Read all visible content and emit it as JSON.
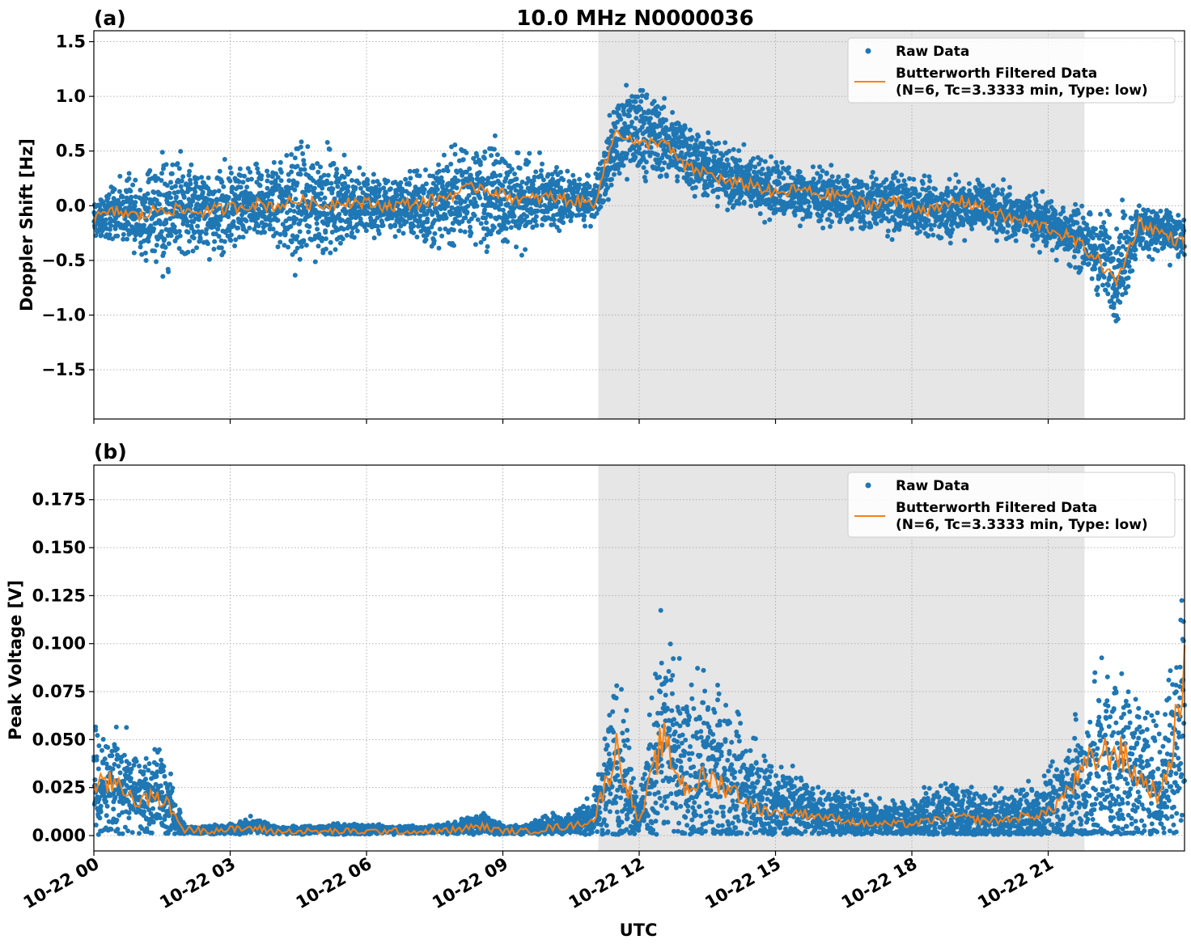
{
  "figure": {
    "title": "10.0 MHz N0000036",
    "xlabel": "UTC"
  },
  "colors": {
    "raw": "#1f77b4",
    "filtered": "#ff7f0e",
    "shade": "#e6e6e6",
    "grid": "#b0b0b0"
  },
  "x_ticks": [
    "10-22 00",
    "10-22 03",
    "10-22 06",
    "10-22 09",
    "10-22 12",
    "10-22 15",
    "10-22 18",
    "10-22 21"
  ],
  "chart_data": [
    {
      "type": "scatter",
      "panel": "(a)",
      "title": "10.0 MHz N0000036",
      "xlabel": "",
      "ylabel": "Doppler Shift [Hz]",
      "x_unit": "hours UTC on 10-22",
      "xlim": [
        0,
        24
      ],
      "ylim": [
        -1.95,
        1.6
      ],
      "yticks": [
        "1.5",
        "1.0",
        "0.5",
        "0.0",
        "−0.5",
        "−1.0",
        "−1.5"
      ],
      "ytick_values": [
        1.5,
        1.0,
        0.5,
        0.0,
        -0.5,
        -1.0,
        -1.5
      ],
      "shaded_interval_hours": [
        11.1,
        21.8
      ],
      "grid": true,
      "legend_position": "top-right",
      "series": [
        {
          "name": "Raw Data",
          "style": "dots",
          "x": [
            0,
            0.5,
            1,
            1.5,
            2,
            2.5,
            3,
            3.5,
            4,
            4.5,
            5,
            5.5,
            6,
            6.5,
            7,
            7.5,
            8,
            8.5,
            9,
            9.5,
            10,
            10.5,
            11,
            11.5,
            12,
            12.5,
            13,
            13.5,
            14,
            14.5,
            15,
            15.5,
            16,
            16.5,
            17,
            17.5,
            18,
            18.5,
            19,
            19.5,
            20,
            20.5,
            21,
            21.5,
            22,
            22.5,
            23,
            23.5,
            24
          ],
          "center": [
            -0.15,
            -0.05,
            -0.1,
            -0.05,
            0.0,
            -0.05,
            -0.05,
            0.0,
            0.05,
            0.0,
            0.02,
            0.05,
            0.0,
            0.0,
            0.0,
            0.0,
            0.1,
            0.15,
            0.1,
            0.05,
            0.05,
            0.05,
            0.05,
            0.6,
            0.7,
            0.6,
            0.5,
            0.35,
            0.25,
            0.2,
            0.15,
            0.1,
            0.1,
            0.05,
            0.0,
            0.05,
            0.0,
            -0.05,
            0.0,
            0.0,
            -0.05,
            -0.1,
            -0.15,
            -0.25,
            -0.4,
            -0.6,
            -0.2,
            -0.25,
            -0.3
          ],
          "spread": [
            0.3,
            0.35,
            0.45,
            0.7,
            0.6,
            0.55,
            0.55,
            0.45,
            0.55,
            0.8,
            0.75,
            0.5,
            0.45,
            0.35,
            0.4,
            0.55,
            0.6,
            0.65,
            0.6,
            0.55,
            0.45,
            0.3,
            0.3,
            0.55,
            0.6,
            0.5,
            0.45,
            0.4,
            0.4,
            0.35,
            0.4,
            0.35,
            0.35,
            0.3,
            0.35,
            0.4,
            0.35,
            0.35,
            0.4,
            0.35,
            0.3,
            0.3,
            0.35,
            0.4,
            0.45,
            0.7,
            0.35,
            0.3,
            0.3
          ]
        },
        {
          "name": "Butterworth Filtered Data\n(N=6, Tc=3.3333 min, Type: low)",
          "style": "line",
          "x": [
            0,
            0.5,
            1,
            1.5,
            2,
            2.5,
            3,
            3.5,
            4,
            4.5,
            5,
            5.5,
            6,
            6.5,
            7,
            7.5,
            8,
            8.5,
            9,
            9.5,
            10,
            10.5,
            11,
            11.5,
            12,
            12.5,
            13,
            13.5,
            14,
            14.5,
            15,
            15.5,
            16,
            16.5,
            17,
            17.5,
            18,
            18.5,
            19,
            19.5,
            20,
            20.5,
            21,
            21.5,
            22,
            22.5,
            23,
            23.5,
            24
          ],
          "y": [
            -0.12,
            -0.05,
            -0.1,
            -0.02,
            -0.05,
            -0.05,
            -0.02,
            0.02,
            0.0,
            0.05,
            0.0,
            0.05,
            0.02,
            0.0,
            0.02,
            0.05,
            0.12,
            0.18,
            0.1,
            0.05,
            0.08,
            0.05,
            0.02,
            0.7,
            0.55,
            0.6,
            0.35,
            0.3,
            0.2,
            0.2,
            0.1,
            0.15,
            0.1,
            0.1,
            0.0,
            0.05,
            0.0,
            -0.05,
            0.05,
            0.0,
            -0.1,
            -0.15,
            -0.2,
            -0.3,
            -0.45,
            -0.7,
            -0.15,
            -0.25,
            -0.35
          ]
        }
      ]
    },
    {
      "type": "scatter",
      "panel": "(b)",
      "title": "",
      "xlabel": "UTC",
      "ylabel": "Peak Voltage [V]",
      "x_unit": "hours UTC on 10-22",
      "xlim": [
        0,
        24
      ],
      "ylim": [
        -0.008,
        0.193
      ],
      "yticks": [
        "0.175",
        "0.150",
        "0.125",
        "0.100",
        "0.075",
        "0.050",
        "0.025",
        "0.000"
      ],
      "ytick_values": [
        0.175,
        0.15,
        0.125,
        0.1,
        0.075,
        0.05,
        0.025,
        0.0
      ],
      "shaded_interval_hours": [
        11.1,
        21.8
      ],
      "grid": true,
      "legend_position": "top-right",
      "series": [
        {
          "name": "Raw Data",
          "style": "dots",
          "x": [
            0,
            0.5,
            1,
            1.5,
            2,
            2.5,
            3,
            3.5,
            4,
            4.5,
            5,
            5.5,
            6,
            6.5,
            7,
            7.5,
            8,
            8.5,
            9,
            9.5,
            10,
            10.5,
            11,
            11.5,
            12,
            12.5,
            13,
            13.5,
            14,
            14.5,
            15,
            15.5,
            16,
            16.5,
            17,
            17.5,
            18,
            18.5,
            19,
            19.5,
            20,
            20.5,
            21,
            21.5,
            22,
            22.5,
            23,
            23.5,
            24
          ],
          "center": [
            0.025,
            0.028,
            0.02,
            0.02,
            0.003,
            0.003,
            0.003,
            0.005,
            0.003,
            0.003,
            0.003,
            0.003,
            0.003,
            0.003,
            0.003,
            0.003,
            0.004,
            0.006,
            0.003,
            0.003,
            0.005,
            0.006,
            0.01,
            0.04,
            0.008,
            0.05,
            0.03,
            0.035,
            0.03,
            0.02,
            0.015,
            0.015,
            0.012,
            0.01,
            0.008,
            0.008,
            0.008,
            0.01,
            0.01,
            0.008,
            0.008,
            0.01,
            0.012,
            0.02,
            0.03,
            0.035,
            0.03,
            0.025,
            0.07
          ],
          "spread": [
            0.04,
            0.04,
            0.03,
            0.035,
            0.003,
            0.003,
            0.004,
            0.006,
            0.003,
            0.003,
            0.003,
            0.004,
            0.004,
            0.003,
            0.003,
            0.003,
            0.005,
            0.01,
            0.004,
            0.004,
            0.008,
            0.01,
            0.015,
            0.07,
            0.01,
            0.09,
            0.06,
            0.07,
            0.06,
            0.04,
            0.03,
            0.025,
            0.02,
            0.02,
            0.015,
            0.015,
            0.015,
            0.025,
            0.025,
            0.02,
            0.02,
            0.025,
            0.03,
            0.05,
            0.07,
            0.08,
            0.06,
            0.05,
            0.13
          ]
        },
        {
          "name": "Butterworth Filtered Data\n(N=6, Tc=3.3333 min, Type: low)",
          "style": "line",
          "x": [
            0,
            0.5,
            1,
            1.5,
            2,
            2.5,
            3,
            3.5,
            4,
            4.5,
            5,
            5.5,
            6,
            6.5,
            7,
            7.5,
            8,
            8.5,
            9,
            9.5,
            10,
            10.5,
            11,
            11.5,
            12,
            12.5,
            13,
            13.5,
            14,
            14.5,
            15,
            15.5,
            16,
            16.5,
            17,
            17.5,
            18,
            18.5,
            19,
            19.5,
            20,
            20.5,
            21,
            21.5,
            22,
            22.5,
            23,
            23.5,
            24
          ],
          "y": [
            0.025,
            0.028,
            0.018,
            0.02,
            0.003,
            0.003,
            0.003,
            0.004,
            0.002,
            0.002,
            0.002,
            0.002,
            0.002,
            0.002,
            0.002,
            0.002,
            0.003,
            0.005,
            0.002,
            0.002,
            0.004,
            0.005,
            0.008,
            0.045,
            0.006,
            0.05,
            0.025,
            0.03,
            0.025,
            0.015,
            0.012,
            0.012,
            0.01,
            0.008,
            0.006,
            0.006,
            0.006,
            0.008,
            0.01,
            0.008,
            0.008,
            0.01,
            0.012,
            0.025,
            0.04,
            0.045,
            0.03,
            0.02,
            0.08
          ]
        }
      ]
    }
  ]
}
